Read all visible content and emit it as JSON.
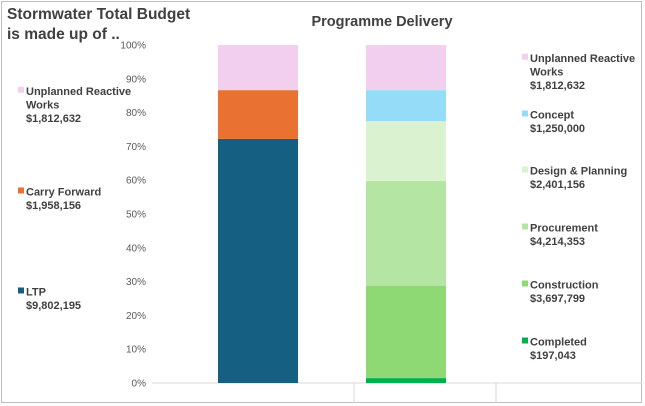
{
  "chart_data": {
    "type": "bar",
    "stacked": true,
    "percent_stacked": true,
    "title_left_lines": [
      "Stormwater Total Budget",
      "is made up of .."
    ],
    "title_right": "Programme Delivery",
    "y_ticks": [
      "0%",
      "10%",
      "20%",
      "30%",
      "40%",
      "50%",
      "60%",
      "70%",
      "80%",
      "90%",
      "100%"
    ],
    "ylim": [
      0,
      100
    ],
    "grid": false,
    "bars": [
      {
        "name": "Stormwater Total Budget",
        "segments": [
          {
            "name": "LTP",
            "value": 9802195,
            "display": "$9,802,195",
            "color": "#156082",
            "label_lines": [
              "LTP"
            ]
          },
          {
            "name": "Carry Forward",
            "value": 1958156,
            "display": "$1,958,156",
            "color": "#e97132",
            "label_lines": [
              "Carry Forward"
            ]
          },
          {
            "name": "Unplanned Reactive Works",
            "value": 1812632,
            "display": "$1,812,632",
            "color": "#f2cfee",
            "label_lines": [
              "Unplanned Reactive",
              "Works"
            ]
          }
        ]
      },
      {
        "name": "Programme Delivery",
        "segments": [
          {
            "name": "Completed",
            "value": 197043,
            "display": "$197,043",
            "color": "#00b050",
            "label_lines": [
              "Completed"
            ]
          },
          {
            "name": "Construction",
            "value": 3697799,
            "display": "$3,697,799",
            "color": "#8ed973",
            "label_lines": [
              "Construction"
            ]
          },
          {
            "name": "Procurement",
            "value": 4214353,
            "display": "$4,214,353",
            "color": "#b4e5a2",
            "label_lines": [
              "Procurement"
            ]
          },
          {
            "name": "Design & Planning",
            "value": 2401156,
            "display": "$2,401,156",
            "color": "#daf2d0",
            "label_lines": [
              "Design & Planning"
            ]
          },
          {
            "name": "Concept",
            "value": 1250000,
            "display": "$1,250,000",
            "color": "#94dcf8",
            "label_lines": [
              "Concept"
            ]
          },
          {
            "name": "Unplanned Reactive Works",
            "value": 1812632,
            "display": "$1,812,632",
            "color": "#f2cfee",
            "label_lines": [
              "Unplanned Reactive",
              "Works"
            ]
          }
        ]
      }
    ],
    "legend_placement": "left and right of chart"
  }
}
